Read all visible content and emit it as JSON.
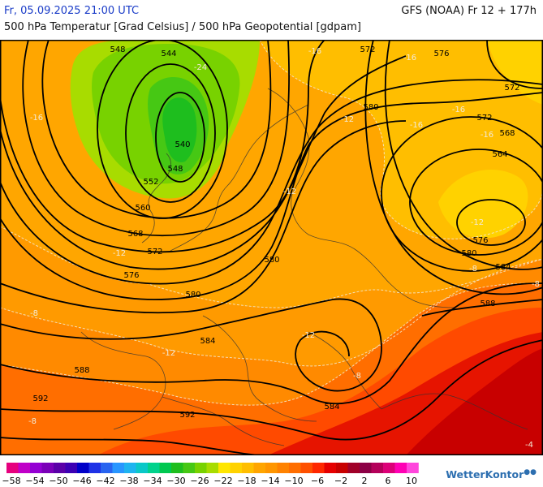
{
  "header": {
    "date": "Fr, 05.09.2025 21:00 UTC",
    "model": "GFS (NOAA) Fr 12 + 177h",
    "description": "500 hPa Temperatur [Grad Celsius] / 500 hPa Geopotential [gdpam]"
  },
  "map": {
    "geopotential_labels": [
      "548",
      "544",
      "540",
      "548",
      "552",
      "560",
      "568",
      "572",
      "576",
      "580",
      "584",
      "588",
      "592",
      "592",
      "584",
      "572",
      "576",
      "572",
      "580",
      "572",
      "568",
      "564",
      "576",
      "580",
      "584",
      "588",
      "580"
    ],
    "temperature_labels": [
      "-24",
      "-16",
      "-16",
      "-12",
      "-12",
      "-12",
      "-16",
      "-16",
      "-12",
      "-12",
      "-12",
      "-8",
      "-8",
      "-8",
      "-8",
      "-4",
      "-8",
      "-16",
      "-16"
    ]
  },
  "legend": {
    "colors": [
      "#e6007e",
      "#c000c8",
      "#9400d3",
      "#7a00b8",
      "#5a00a8",
      "#3c00b4",
      "#0000c8",
      "#1e32e6",
      "#2864f0",
      "#2896ff",
      "#1eb4f0",
      "#0ac8c8",
      "#00d28c",
      "#00c850",
      "#1ebe1e",
      "#46c814",
      "#78d200",
      "#a8dc00",
      "#ffe600",
      "#ffd200",
      "#ffbe00",
      "#ffa500",
      "#ff9600",
      "#ff8200",
      "#ff6e00",
      "#ff5000",
      "#ff2800",
      "#e60000",
      "#c80000",
      "#a00028",
      "#8c0046",
      "#b4005a",
      "#dc0078",
      "#ff00b4",
      "#ff46dc"
    ],
    "labels": [
      "−58",
      "−54",
      "−50",
      "−46",
      "−42",
      "−38",
      "−34",
      "−30",
      "−26",
      "−22",
      "−18",
      "−14",
      "−10",
      "−6",
      "−2",
      "2",
      "6",
      "10"
    ]
  },
  "logo": {
    "text": "WetterKontor"
  }
}
